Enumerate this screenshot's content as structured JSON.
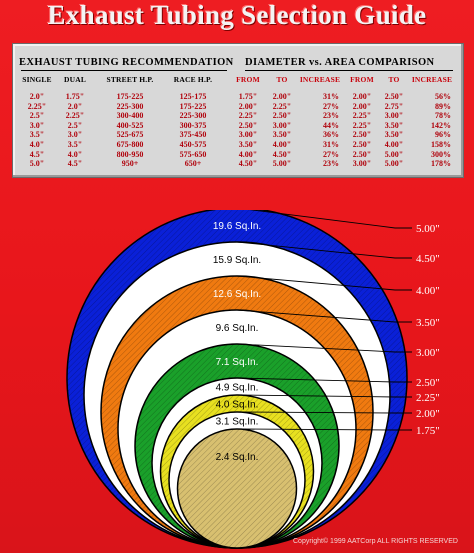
{
  "title": "Exhaust Tubing Selection Guide",
  "recommendation": {
    "header": "EXHAUST TUBING RECOMMENDATION",
    "columns": [
      "SINGLE",
      "DUAL",
      "STREET H.P.",
      "RACE H.P."
    ],
    "rows": [
      [
        "2.0\"",
        "1.75\"",
        "175-225",
        "125-175"
      ],
      [
        "2.25\"",
        "2.0\"",
        "225-300",
        "175-225"
      ],
      [
        "2.5\"",
        "2.25\"",
        "300-400",
        "225-300"
      ],
      [
        "3.0\"",
        "2.5\"",
        "400-525",
        "300-375"
      ],
      [
        "3.5\"",
        "3.0\"",
        "525-675",
        "375-450"
      ],
      [
        "4.0\"",
        "3.5\"",
        "675-800",
        "450-575"
      ],
      [
        "4.5\"",
        "4.0\"",
        "800-950",
        "575-650"
      ],
      [
        "5.0\"",
        "4.5\"",
        "950+",
        "650+"
      ]
    ]
  },
  "comparison": {
    "header": "DIAMETER vs. AREA COMPARISON",
    "columns": [
      "FROM",
      "TO",
      "INCREASE",
      "FROM",
      "TO",
      "INCREASE"
    ],
    "rows": [
      [
        "1.75\"",
        "2.00\"",
        "31%",
        "2.00\"",
        "2.50\"",
        "56%"
      ],
      [
        "2.00\"",
        "2.25\"",
        "27%",
        "2.00\"",
        "2.75\"",
        "89%"
      ],
      [
        "2.25\"",
        "2.50\"",
        "23%",
        "2.25\"",
        "3.00\"",
        "78%"
      ],
      [
        "2.50\"",
        "3.00\"",
        "44%",
        "2.25\"",
        "3.50\"",
        "142%"
      ],
      [
        "3.00\"",
        "3.50\"",
        "36%",
        "2.50\"",
        "3.50\"",
        "96%"
      ],
      [
        "3.50\"",
        "4.00\"",
        "31%",
        "2.50\"",
        "4.00\"",
        "158%"
      ],
      [
        "4.00\"",
        "4.50\"",
        "27%",
        "2.50\"",
        "5.00\"",
        "300%"
      ],
      [
        "4.50\"",
        "5.00\"",
        "23%",
        "3.00\"",
        "5.00\"",
        "178%"
      ]
    ]
  },
  "rings": [
    {
      "diameter": "5.00\"",
      "area": "19.6 Sq.In.",
      "color": "#0a20d8"
    },
    {
      "diameter": "4.50\"",
      "area": "15.9 Sq.In.",
      "color": "#ffffff"
    },
    {
      "diameter": "4.00\"",
      "area": "12.6 Sq.In.",
      "color": "#f07a10"
    },
    {
      "diameter": "3.50\"",
      "area": "9.6 Sq.In.",
      "color": "#ffffff"
    },
    {
      "diameter": "3.00\"",
      "area": "7.1 Sq.In.",
      "color": "#1aa02a"
    },
    {
      "diameter": "2.50\"",
      "area": "4.9 Sq.In.",
      "color": "#ffffff"
    },
    {
      "diameter": "2.25\"",
      "area": "4.0 Sq.In.",
      "color": "#e8e020"
    },
    {
      "diameter": "2.00\"",
      "area": "3.1 Sq.In.",
      "color": "#ffffff"
    },
    {
      "diameter": "1.75\"",
      "area": "2.4 Sq.In.",
      "color": "#d8c070"
    }
  ],
  "copyright": "Copyright© 1999 AATCorp ALL RIGHTS RESERVED"
}
